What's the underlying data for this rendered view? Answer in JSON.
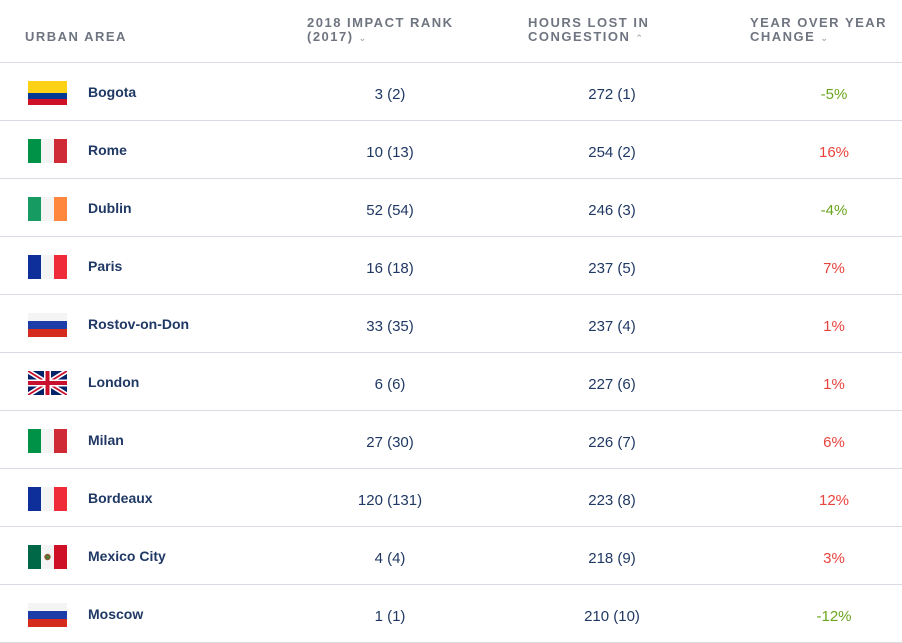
{
  "headers": {
    "area": "URBAN AREA",
    "rank_line1": "2018 IMPACT RANK",
    "rank_line2": "(2017)",
    "hours_line1": "HOURS LOST IN",
    "hours_line2": "CONGESTION",
    "change_line1": "YEAR OVER YEAR",
    "change_line2": "CHANGE",
    "caret_down": "⌄",
    "caret_up": "⌃"
  },
  "rows": [
    {
      "city": "Bogota",
      "flag": "colombia-flag-icon",
      "rank": "3 (2)",
      "hours": "272 (1)",
      "change": "-5%",
      "trend": "neg"
    },
    {
      "city": "Rome",
      "flag": "italy-flag-icon",
      "rank": "10 (13)",
      "hours": "254 (2)",
      "change": "16%",
      "trend": "pos"
    },
    {
      "city": "Dublin",
      "flag": "ireland-flag-icon",
      "rank": "52 (54)",
      "hours": "246 (3)",
      "change": "-4%",
      "trend": "neg"
    },
    {
      "city": "Paris",
      "flag": "france-flag-icon",
      "rank": "16 (18)",
      "hours": "237 (5)",
      "change": "7%",
      "trend": "pos"
    },
    {
      "city": "Rostov-on-Don",
      "flag": "russia-flag-icon",
      "rank": "33 (35)",
      "hours": "237 (4)",
      "change": "1%",
      "trend": "pos"
    },
    {
      "city": "London",
      "flag": "uk-flag-icon",
      "rank": "6 (6)",
      "hours": "227 (6)",
      "change": "1%",
      "trend": "pos"
    },
    {
      "city": "Milan",
      "flag": "italy-flag-icon",
      "rank": "27 (30)",
      "hours": "226 (7)",
      "change": "6%",
      "trend": "pos"
    },
    {
      "city": "Bordeaux",
      "flag": "france-flag-icon",
      "rank": "120 (131)",
      "hours": "223 (8)",
      "change": "12%",
      "trend": "pos"
    },
    {
      "city": "Mexico City",
      "flag": "mexico-flag-icon",
      "rank": "4 (4)",
      "hours": "218 (9)",
      "change": "3%",
      "trend": "pos"
    },
    {
      "city": "Moscow",
      "flag": "russia-flag-icon",
      "rank": "1 (1)",
      "hours": "210 (10)",
      "change": "-12%",
      "trend": "neg"
    }
  ],
  "colors": {
    "positive_change": "#e8433c",
    "negative_change": "#6aa51f",
    "city_text": "#1f3864",
    "header_text": "#6f7580"
  }
}
